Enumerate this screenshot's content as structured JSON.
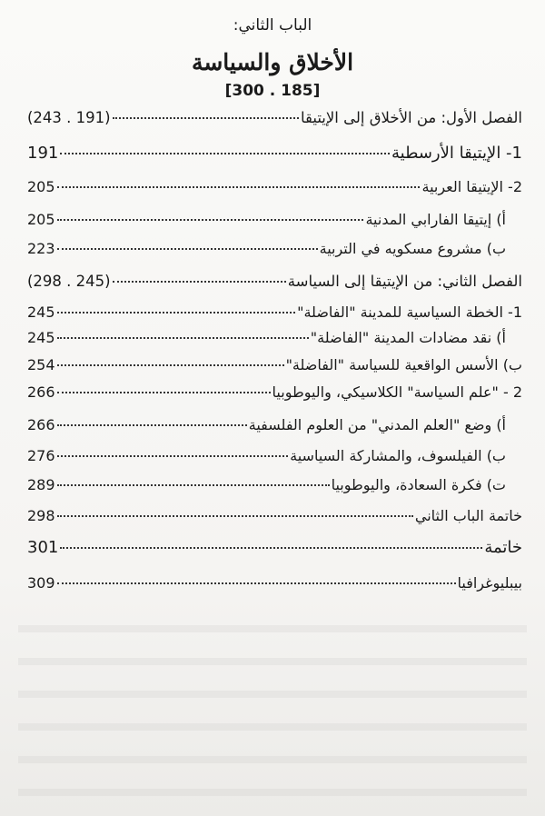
{
  "part_label": "الباب الثاني:",
  "part_title": "الأخلاق والسياسة",
  "part_range": "[300 . 185]",
  "entries": [
    {
      "label": "الفصل الأول:  من الأخلاق إلى الإيتيقا",
      "page": "(243 . 191)"
    },
    {
      "label": "1-  الإيتيقا الأرسطية",
      "page": "191"
    },
    {
      "label": "2-  الإيتيقا العربية",
      "page": "205"
    },
    {
      "label": "أ) إيتيقا الفارابي المدنية",
      "page": "205"
    },
    {
      "label": "ب) مشروع مسكويه في التربية",
      "page": "223"
    },
    {
      "label": "الفصل الثاني:  من الإيتيقا إلى السياسة",
      "page": "(298 . 245)"
    },
    {
      "label": "1- الخطة السياسية للمدينة \"الفاضلة\"",
      "page": "245"
    },
    {
      "label": "أ) نقد مضادات المدينة \"الفاضلة\"",
      "page": "245"
    },
    {
      "label": "ب) الأسس الواقعية للسياسة \"الفاضلة\"",
      "page": "254"
    },
    {
      "label": "2 - \"علم السياسة\" الكلاسيكي، واليوطوبيا",
      "page": "266"
    },
    {
      "label": "أ) وضع \"العلم المدني\" من العلوم الفلسفية",
      "page": "266"
    },
    {
      "label": "ب) الفيلسوف، والمشاركة السياسية",
      "page": "276"
    },
    {
      "label": "ت) فكرة السعادة، واليوطوبيا",
      "page": "289"
    },
    {
      "label": "خاتمة الباب الثاني",
      "page": "298"
    },
    {
      "label": "خاتمة",
      "page": "301"
    },
    {
      "label": "بيبليوغرافيا",
      "page": "309"
    }
  ]
}
